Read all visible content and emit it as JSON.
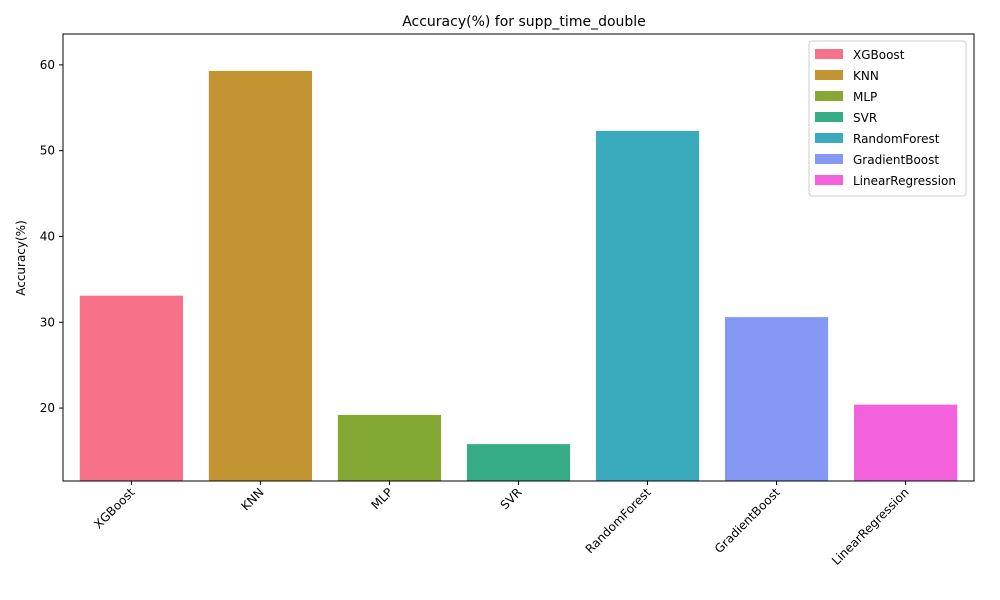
{
  "chart_data": {
    "type": "bar",
    "title": "Accuracy(%) for supp_time_double",
    "xlabel": "",
    "ylabel": "Accuracy(%)",
    "categories": [
      "XGBoost",
      "KNN",
      "MLP",
      "SVR",
      "RandomForest",
      "GradientBoost",
      "LinearRegression"
    ],
    "values": [
      33.1,
      59.3,
      19.2,
      15.8,
      52.3,
      30.6,
      20.4
    ],
    "colors": [
      "#f77189",
      "#c39532",
      "#83a834",
      "#36ad86",
      "#3aaabd",
      "#8599f4",
      "#f461dd"
    ],
    "ylim": [
      11.5,
      63.6
    ],
    "yticks": [
      20,
      30,
      40,
      50,
      60
    ],
    "legend": {
      "placement": "top-right",
      "entries": [
        "XGBoost",
        "KNN",
        "MLP",
        "SVR",
        "RandomForest",
        "GradientBoost",
        "LinearRegression"
      ]
    },
    "grid": false
  }
}
